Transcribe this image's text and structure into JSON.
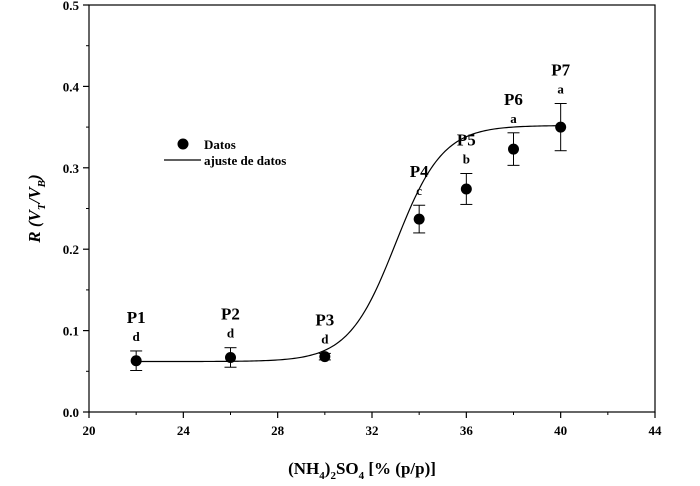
{
  "chart_data": {
    "type": "scatter",
    "xlabel": {
      "pre": "(NH",
      "sub1": "4",
      "mid": ")",
      "sub2": "2",
      "post": "SO",
      "sub3": "4",
      "tail": " [% (p/p)]"
    },
    "ylabel": {
      "pre": "R (V",
      "sub1": "T",
      "mid": "/V",
      "sub2": "B",
      "post": ")"
    },
    "xlim": [
      20,
      44
    ],
    "ylim": [
      0.0,
      0.5
    ],
    "xticks": [
      20,
      24,
      28,
      32,
      36,
      40,
      44
    ],
    "yticks": [
      0.0,
      0.1,
      0.2,
      0.3,
      0.4,
      0.5
    ],
    "ytick_labels": [
      "0.0",
      "0.1",
      "0.2",
      "0.3",
      "0.4",
      "0.5"
    ],
    "legend": {
      "placement": "upper-left",
      "points": "Datos",
      "fit": "ajuste de datos"
    },
    "points": [
      {
        "label": "P1",
        "letter": "d",
        "x": 22,
        "y": 0.063,
        "err": 0.012
      },
      {
        "label": "P2",
        "letter": "d",
        "x": 26,
        "y": 0.067,
        "err": 0.012
      },
      {
        "label": "P3",
        "letter": "d",
        "x": 30,
        "y": 0.068,
        "err": 0.004
      },
      {
        "label": "P4",
        "letter": "c",
        "x": 34,
        "y": 0.237,
        "err": 0.017
      },
      {
        "label": "P5",
        "letter": "b",
        "x": 36,
        "y": 0.274,
        "err": 0.019
      },
      {
        "label": "P6",
        "letter": "a",
        "x": 38,
        "y": 0.323,
        "err": 0.02
      },
      {
        "label": "P7",
        "letter": "a",
        "x": 40,
        "y": 0.35,
        "err": 0.029
      }
    ],
    "fit": {
      "min": 0.062,
      "max": 0.352,
      "midpoint": 33.0,
      "width": 1.0,
      "x_start": 22,
      "x_end": 40
    }
  }
}
